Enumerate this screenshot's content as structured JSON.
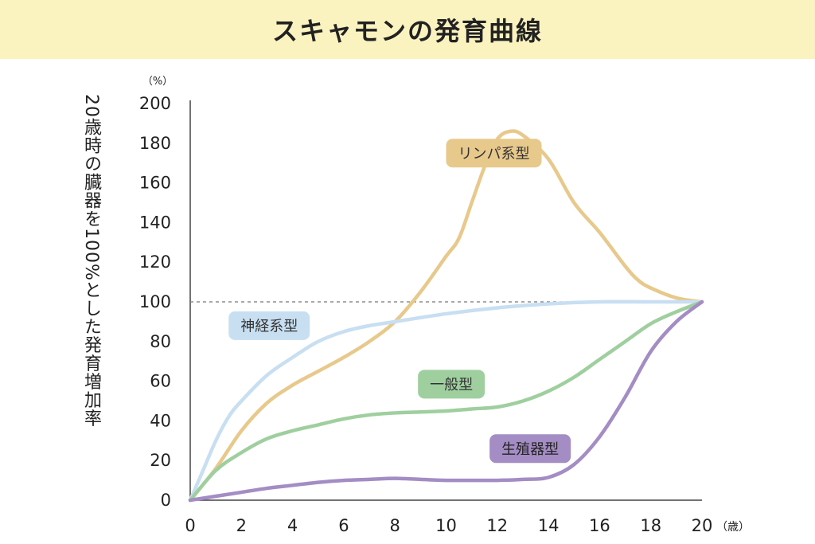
{
  "title": "スキャモンの発育曲線",
  "chart_data": {
    "type": "line",
    "title": "スキャモンの発育曲線",
    "xlabel": "",
    "ylabel": "20歳時の臓器を100%とした発育増加率",
    "x_unit": "（歳）",
    "y_unit": "（%）",
    "xlim": [
      0,
      20
    ],
    "ylim": [
      0,
      200
    ],
    "x_ticks": [
      0,
      2,
      4,
      6,
      8,
      10,
      12,
      14,
      16,
      18,
      20
    ],
    "y_ticks": [
      0,
      20,
      40,
      60,
      80,
      100,
      120,
      140,
      160,
      180,
      200
    ],
    "reference_line": 100,
    "grid": false,
    "series": [
      {
        "name": "リンパ系型",
        "color": "#e8c98c",
        "label_bg": "#e8c98c",
        "label_color": "#333333",
        "label_anchor": [
          10,
          175
        ],
        "points": [
          [
            0,
            0
          ],
          [
            1,
            16
          ],
          [
            2,
            35
          ],
          [
            3,
            49
          ],
          [
            4,
            58
          ],
          [
            5,
            65
          ],
          [
            6,
            72
          ],
          [
            7,
            80
          ],
          [
            8,
            90
          ],
          [
            9,
            105
          ],
          [
            10,
            123
          ],
          [
            10.5,
            132
          ],
          [
            11,
            150
          ],
          [
            11.5,
            168
          ],
          [
            12,
            182
          ],
          [
            12.5,
            186
          ],
          [
            13,
            184
          ],
          [
            14,
            172
          ],
          [
            15,
            150
          ],
          [
            16,
            135
          ],
          [
            17,
            118
          ],
          [
            17.5,
            111
          ],
          [
            18,
            107
          ],
          [
            19,
            102
          ],
          [
            20,
            100
          ]
        ]
      },
      {
        "name": "神経系型",
        "color": "#c8dff2",
        "label_bg": "#c8dff2",
        "label_color": "#333333",
        "label_anchor": [
          1.5,
          88
        ],
        "points": [
          [
            0,
            0
          ],
          [
            0.5,
            15
          ],
          [
            1,
            30
          ],
          [
            1.5,
            42
          ],
          [
            2,
            50
          ],
          [
            3,
            63
          ],
          [
            4,
            72
          ],
          [
            5,
            80
          ],
          [
            6,
            85
          ],
          [
            7,
            88
          ],
          [
            8,
            90
          ],
          [
            10,
            94
          ],
          [
            12,
            97
          ],
          [
            14,
            99
          ],
          [
            16,
            100
          ],
          [
            18,
            100
          ],
          [
            20,
            100
          ]
        ]
      },
      {
        "name": "一般型",
        "color": "#9fcf9f",
        "label_bg": "#9fcf9f",
        "label_color": "#333333",
        "label_anchor": [
          8.9,
          58.5
        ],
        "points": [
          [
            0,
            0
          ],
          [
            1,
            15
          ],
          [
            2,
            24
          ],
          [
            3,
            31
          ],
          [
            4,
            35
          ],
          [
            5,
            38
          ],
          [
            6,
            41
          ],
          [
            7,
            43
          ],
          [
            8,
            44
          ],
          [
            9,
            44.5
          ],
          [
            10,
            45
          ],
          [
            11,
            46
          ],
          [
            12,
            47
          ],
          [
            13,
            50
          ],
          [
            14,
            55
          ],
          [
            15,
            62
          ],
          [
            16,
            71
          ],
          [
            17,
            80
          ],
          [
            18,
            89
          ],
          [
            19,
            95
          ],
          [
            20,
            100
          ]
        ]
      },
      {
        "name": "生殖器型",
        "color": "#a48cc4",
        "label_bg": "#a48cc4",
        "label_color": "#222222",
        "label_anchor": [
          11.7,
          26
        ],
        "points": [
          [
            0,
            0
          ],
          [
            1,
            2
          ],
          [
            2,
            4
          ],
          [
            3,
            6
          ],
          [
            4,
            7.5
          ],
          [
            5,
            9
          ],
          [
            6,
            10
          ],
          [
            7,
            10.5
          ],
          [
            8,
            11
          ],
          [
            9,
            10.5
          ],
          [
            10,
            10
          ],
          [
            11,
            10
          ],
          [
            12,
            10
          ],
          [
            13,
            10.5
          ],
          [
            14,
            11.5
          ],
          [
            15,
            18
          ],
          [
            16,
            32
          ],
          [
            17,
            52
          ],
          [
            18,
            75
          ],
          [
            19,
            90
          ],
          [
            20,
            100
          ]
        ]
      }
    ]
  }
}
